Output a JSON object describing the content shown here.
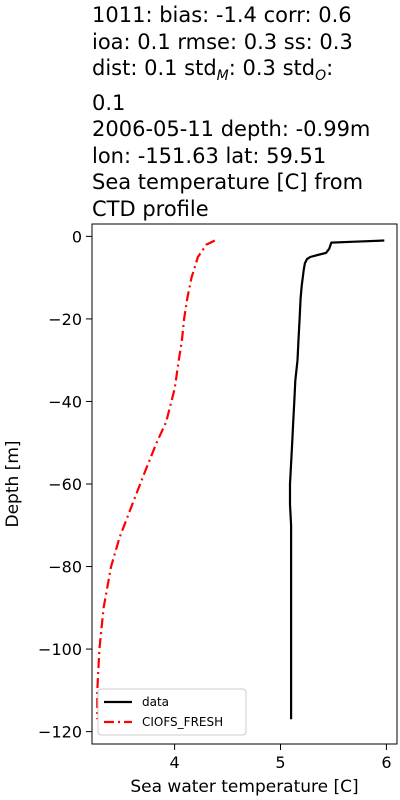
{
  "title": {
    "line1": "1011: bias: -1.4  corr: 0.6",
    "line2": "ioa: 0.1  rmse: 0.3  ss: 0.3",
    "line3_dist": "dist: 0.1  std",
    "line3_std_m_sub": "M",
    "line3_std_m_val": ": 0.3  std",
    "line3_std_o_sub": "O",
    "line3_std_o_val": ":",
    "line4": "0.1",
    "line5": "2006-05-11 depth: -0.99m",
    "line6": "lon: -151.63 lat: 59.51",
    "line7": "Sea temperature [C] from",
    "line8": "CTD profile"
  },
  "chart_data": {
    "type": "line",
    "xlabel": "Sea water temperature [C]",
    "ylabel": "Depth [m]",
    "xlim": [
      3.22,
      6.1
    ],
    "ylim": [
      -123,
      3
    ],
    "xticks": [
      4,
      5,
      6
    ],
    "yticks": [
      0,
      -20,
      -40,
      -60,
      -80,
      -100,
      -120
    ],
    "grid": false,
    "legend_position": "lower-left",
    "series": [
      {
        "name": "data",
        "color": "#000000",
        "style": "solid",
        "points": [
          [
            5.98,
            -1
          ],
          [
            5.7,
            -1.3
          ],
          [
            5.48,
            -1.5
          ],
          [
            5.46,
            -3
          ],
          [
            5.43,
            -4
          ],
          [
            5.35,
            -4.5
          ],
          [
            5.28,
            -5
          ],
          [
            5.25,
            -5.5
          ],
          [
            5.23,
            -6.5
          ],
          [
            5.22,
            -8
          ],
          [
            5.2,
            -12
          ],
          [
            5.19,
            -15
          ],
          [
            5.18,
            -20
          ],
          [
            5.17,
            -25
          ],
          [
            5.16,
            -30
          ],
          [
            5.14,
            -35
          ],
          [
            5.13,
            -40
          ],
          [
            5.12,
            -45
          ],
          [
            5.11,
            -50
          ],
          [
            5.1,
            -55
          ],
          [
            5.09,
            -60
          ],
          [
            5.09,
            -65
          ],
          [
            5.1,
            -70
          ],
          [
            5.1,
            -80
          ],
          [
            5.1,
            -90
          ],
          [
            5.1,
            -100
          ],
          [
            5.1,
            -110
          ],
          [
            5.1,
            -117
          ]
        ]
      },
      {
        "name": "CIOFS_FRESH",
        "color": "#ff0000",
        "style": "dashdot",
        "points": [
          [
            4.38,
            -1
          ],
          [
            4.3,
            -2
          ],
          [
            4.22,
            -5
          ],
          [
            4.16,
            -10
          ],
          [
            4.12,
            -15
          ],
          [
            4.09,
            -20
          ],
          [
            4.07,
            -25
          ],
          [
            4.04,
            -30
          ],
          [
            4.0,
            -37
          ],
          [
            3.92,
            -45
          ],
          [
            3.83,
            -50
          ],
          [
            3.72,
            -57
          ],
          [
            3.6,
            -65
          ],
          [
            3.48,
            -73
          ],
          [
            3.4,
            -80
          ],
          [
            3.33,
            -90
          ],
          [
            3.29,
            -100
          ],
          [
            3.27,
            -110
          ],
          [
            3.27,
            -117
          ]
        ]
      }
    ]
  }
}
